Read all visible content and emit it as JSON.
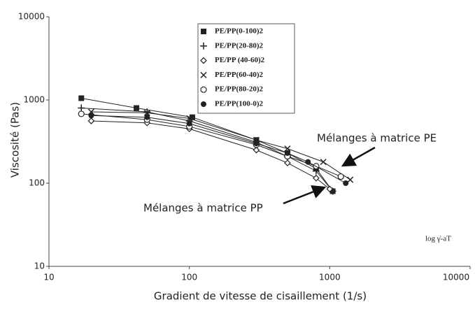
{
  "chart_data": {
    "type": "scatter",
    "xlabel": "Gradient de vitesse de cisaillement (1/s)",
    "ylabel": "Viscosité (Pas)",
    "xscale": "log",
    "yscale": "log",
    "xlim": [
      10,
      10000
    ],
    "ylim": [
      10,
      10000
    ],
    "xticks": [
      10,
      100,
      1000,
      10000
    ],
    "yticks": [
      10,
      100,
      1000,
      10000
    ],
    "annotations": [
      "Mélanges à matrice PE",
      "Mélanges à matrice PP",
      "log γ̇-aT"
    ],
    "series": [
      {
        "name": "PE/PP(0-100)2",
        "marker": "square",
        "color": "#222222",
        "x": [
          17,
          42,
          105,
          300,
          500,
          800,
          1050
        ],
        "values": [
          1050,
          800,
          620,
          330,
          230,
          150,
          80
        ]
      },
      {
        "name": "PE/PP(20-80)2",
        "marker": "plus",
        "color": "#222222",
        "x": [
          17,
          50,
          100,
          300,
          500,
          800,
          1050
        ],
        "values": [
          800,
          720,
          560,
          310,
          210,
          140,
          80
        ]
      },
      {
        "name": "PE/PP (40-60)2",
        "marker": "diamond",
        "color": "#222222",
        "x": [
          20,
          50,
          100,
          300,
          500,
          800,
          1000
        ],
        "values": [
          560,
          530,
          450,
          250,
          175,
          115,
          85
        ]
      },
      {
        "name": "PE/PP(60-40)2",
        "marker": "cross",
        "color": "#222222",
        "x": [
          20,
          50,
          100,
          300,
          500,
          900,
          1400
        ],
        "values": [
          720,
          700,
          600,
          330,
          260,
          180,
          110
        ]
      },
      {
        "name": "PE/PP(80-20)2",
        "marker": "circle-open",
        "color": "#222222",
        "x": [
          17,
          50,
          100,
          300,
          500,
          800,
          1200
        ],
        "values": [
          680,
          580,
          480,
          290,
          210,
          160,
          120
        ]
      },
      {
        "name": "PE/PP(100-0)2",
        "marker": "circle",
        "color": "#222222",
        "x": [
          20,
          50,
          100,
          300,
          500,
          700,
          1300
        ],
        "values": [
          650,
          620,
          520,
          300,
          230,
          180,
          100
        ]
      }
    ]
  }
}
